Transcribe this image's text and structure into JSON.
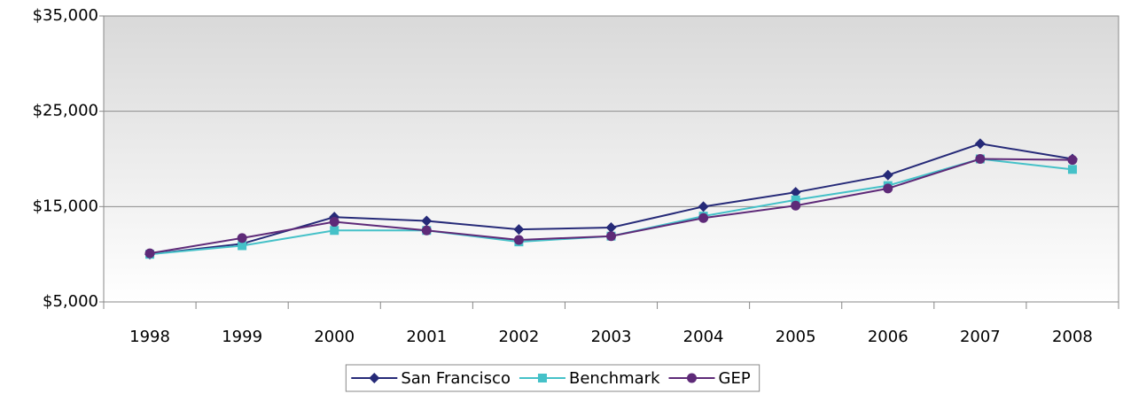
{
  "chart_data": {
    "type": "line",
    "categories": [
      "1998",
      "1999",
      "2000",
      "2001",
      "2002",
      "2003",
      "2004",
      "2005",
      "2006",
      "2007",
      "2008"
    ],
    "series": [
      {
        "name": "San Francisco",
        "color": "#262a78",
        "marker": "diamond",
        "values": [
          10000,
          11100,
          13900,
          13500,
          12600,
          12800,
          15000,
          16500,
          18300,
          21600,
          20000
        ]
      },
      {
        "name": "Benchmark",
        "color": "#45c1c8",
        "marker": "square",
        "values": [
          10000,
          10900,
          12500,
          12500,
          11300,
          11900,
          14000,
          15700,
          17200,
          20000,
          18900
        ]
      },
      {
        "name": "GEP",
        "color": "#5e2a78",
        "marker": "circle",
        "values": [
          10100,
          11700,
          13400,
          12500,
          11500,
          11900,
          13800,
          15100,
          16900,
          20000,
          19900
        ]
      }
    ],
    "ylim": [
      5000,
      35000
    ],
    "yticks": [
      {
        "value": 5000,
        "label": "$5,000"
      },
      {
        "value": 15000,
        "label": "$15,000"
      },
      {
        "value": 25000,
        "label": "$25,000"
      },
      {
        "value": 35000,
        "label": "$35,000"
      }
    ],
    "grid": true,
    "legend": "bottom"
  }
}
